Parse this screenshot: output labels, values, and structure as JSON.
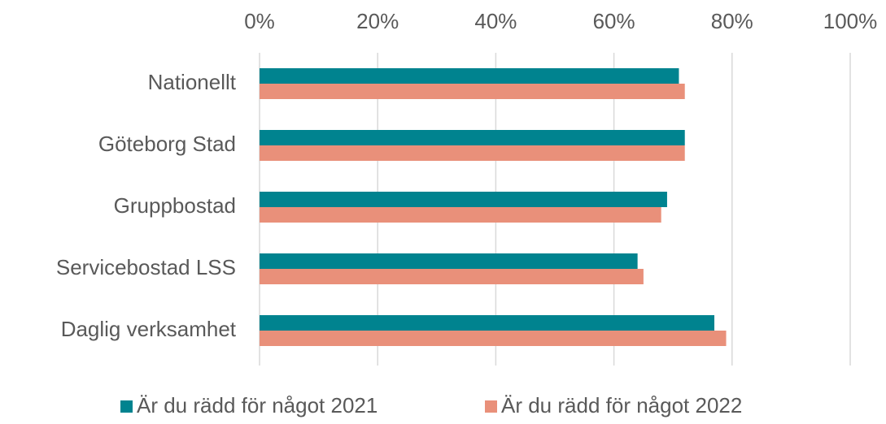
{
  "chart_data": {
    "type": "hbar",
    "categories": [
      "Nationellt",
      "Göteborg Stad",
      "Gruppbostad",
      "Servicebostad LSS",
      "Daglig verksamhet"
    ],
    "series": [
      {
        "name": "Är du rädd för något 2021",
        "color": "#00838f",
        "values": [
          71,
          72,
          69,
          64,
          77
        ]
      },
      {
        "name": "Är du rädd för något 2022",
        "color": "#e9907a",
        "values": [
          72,
          72,
          68,
          65,
          79
        ]
      }
    ],
    "xlim": [
      0,
      100
    ],
    "xticks": [
      {
        "value": 0,
        "label": "0%"
      },
      {
        "value": 20,
        "label": "20%"
      },
      {
        "value": 40,
        "label": "40%"
      },
      {
        "value": 60,
        "label": "60%"
      },
      {
        "value": 80,
        "label": "80%"
      },
      {
        "value": 100,
        "label": "100%"
      }
    ],
    "grid": true,
    "legend": "bottom"
  }
}
